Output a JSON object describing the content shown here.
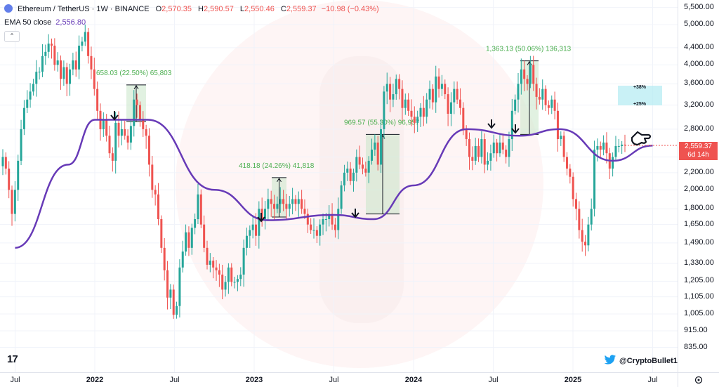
{
  "header": {
    "symbol": "Ethereum / TetherUS · 1W · BINANCE",
    "open_label": "O",
    "open": "2,570.35",
    "high_label": "H",
    "high": "2,590.57",
    "low_label": "L",
    "low": "2,550.46",
    "close_label": "C",
    "close": "2,559.37",
    "change": "−10.98 (−0.43%)"
  },
  "indicator": {
    "label": "EMA 50 close",
    "value": "2,556.80"
  },
  "price_axis": {
    "labels": [
      "5,500.00",
      "5,000.00",
      "4,400.00",
      "4,000.00",
      "3,600.00",
      "3,200.00",
      "2,800.00",
      "2,400.00",
      "2,200.00",
      "2,000.00",
      "1,800.00",
      "1,650.00",
      "1,490.00",
      "1,330.00",
      "1,205.00",
      "1,105.00",
      "1,005.00",
      "915.00",
      "835.00"
    ],
    "current_price": "2,559.37",
    "countdown": "6d 14h"
  },
  "time_axis": {
    "labels": [
      "Jul",
      "2022",
      "Jul",
      "2023",
      "Jul",
      "2024",
      "Jul",
      "2025",
      "Jul"
    ]
  },
  "annotations": {
    "move1": "658.03 (22.50%) 65,803",
    "move2": "418.18 (24.26%) 41,818",
    "move3": "969.57 (55.30%) 96,957",
    "move4": "1,363.13 (50.06%) 136,313",
    "target_high": "+38%",
    "target_low": "+25%"
  },
  "footer": {
    "handle": "@CryptoBullet1"
  },
  "colors": {
    "up": "#26a69a",
    "down": "#ef5350",
    "ema": "#673ab7",
    "measure_text": "#4caf50",
    "measure_box": "#c8e6c9",
    "target_box": "#b2ebf2"
  },
  "chart_data": {
    "type": "candlestick",
    "title": "Ethereum / TetherUS · 1W · BINANCE",
    "scale": "log",
    "ylim": [
      780,
      5600
    ],
    "x_ticks": [
      "Jul 2021",
      "2022",
      "Jul 2022",
      "2023",
      "Jul 2023",
      "2024",
      "Jul 2024",
      "2025",
      "Jul 2025"
    ],
    "grid": true,
    "closes": [
      2400,
      2250,
      2000,
      1750,
      2000,
      2350,
      2800,
      3150,
      3300,
      3450,
      3600,
      3850,
      3850,
      4200,
      4300,
      4500,
      4450,
      4000,
      4100,
      3700,
      3950,
      3600,
      3900,
      4100,
      3900,
      4450,
      4550,
      4800,
      4200,
      3900,
      3500,
      3100,
      2800,
      2950,
      2700,
      2450,
      2350,
      2900,
      2700,
      2800,
      2700,
      2600,
      2850,
      3300,
      3200,
      2950,
      2800,
      2700,
      2300,
      2000,
      1950,
      1700,
      1450,
      1280,
      1100,
      1150,
      1000,
      1050,
      1300,
      1420,
      1580,
      1450,
      1620,
      1700,
      1950,
      1650,
      1450,
      1320,
      1350,
      1300,
      1280,
      1250,
      1150,
      1200,
      1300,
      1200,
      1200,
      1220,
      1250,
      1450,
      1550,
      1600,
      1650,
      1550,
      1800,
      1700,
      1800,
      1900,
      1850,
      1800,
      1850,
      1900,
      1850,
      1800,
      1850,
      1900,
      1850,
      1900,
      1800,
      1750,
      1650,
      1600,
      1600,
      1550,
      1650,
      1700,
      1700,
      1750,
      1650,
      1600,
      1800,
      2050,
      2200,
      2250,
      2100,
      2200,
      2400,
      2300,
      2250,
      2200,
      2350,
      2500,
      2600,
      2300,
      2800,
      3450,
      3600,
      3300,
      3400,
      3700,
      3500,
      3150,
      3300,
      3100,
      3000,
      2900,
      3000,
      3150,
      3000,
      3300,
      3500,
      3250,
      3750,
      3500,
      3600,
      3400,
      3050,
      3250,
      3500,
      3300,
      3150,
      2800,
      2650,
      2400,
      2350,
      2550,
      2400,
      2650,
      2300,
      2350,
      2450,
      2600,
      2450,
      2600,
      2500,
      2400,
      2650,
      3100,
      3300,
      3600,
      3900,
      3700,
      3600,
      4000,
      3600,
      3350,
      3300,
      3500,
      3200,
      3150,
      3300,
      3100,
      2650,
      2700,
      2400,
      2250,
      2150,
      1900,
      1800,
      1600,
      1500,
      1470,
      1650,
      1800,
      2500,
      2550,
      2500,
      2600,
      2450,
      2250,
      2400,
      2550,
      2550,
      2570,
      2559
    ],
    "ema50": {
      "label": "EMA 50 close",
      "values_by_date": [
        [
          "2021-07",
          1450
        ],
        [
          "2021-11",
          2300
        ],
        [
          "2022-01",
          2950
        ],
        [
          "2022-05",
          2950
        ],
        [
          "2022-10",
          2000
        ],
        [
          "2023-02",
          1690
        ],
        [
          "2023-07",
          1740
        ],
        [
          "2023-10",
          1700
        ],
        [
          "2024-01",
          2050
        ],
        [
          "2024-05",
          2800
        ],
        [
          "2024-09",
          2700
        ],
        [
          "2024-12",
          2800
        ],
        [
          "2025-04",
          2350
        ],
        [
          "2025-07",
          2557
        ]
      ]
    },
    "measures": [
      {
        "label": "658.03 (22.50%) 65,803",
        "from": 2920,
        "to": 3580
      },
      {
        "label": "418.18 (24.26%) 41,818",
        "from": 1720,
        "to": 2140
      },
      {
        "label": "969.57 (55.30%) 96,957",
        "from": 1750,
        "to": 2720
      },
      {
        "label": "1,363.13 (50.06%) 136,313",
        "from": 2720,
        "to": 4090
      }
    ],
    "targets": [
      "+38%",
      "+25%"
    ],
    "last_price": 2559.37
  }
}
